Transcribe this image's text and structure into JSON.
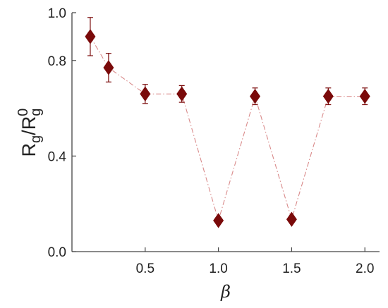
{
  "chart_data": {
    "type": "scatter",
    "xlabel": "β",
    "ylabel": {
      "main": "R",
      "sub": "g",
      "slash": "/R",
      "sup": "0",
      "sub2": "g"
    },
    "xlim": [
      0.0,
      2.1
    ],
    "ylim": [
      0.0,
      1.0
    ],
    "xticks": [
      0.5,
      1.0,
      1.5,
      2.0
    ],
    "xtick_labels": [
      "0.5",
      "1.0",
      "1.5",
      "2.0"
    ],
    "yticks": [
      0.0,
      0.4,
      0.8,
      1.0
    ],
    "ytick_labels": [
      "0.0",
      "0.4",
      "0.8",
      "1.0"
    ],
    "grid": false,
    "legend": "none",
    "series": [
      {
        "x": [
          0.125,
          0.25,
          0.5,
          0.75,
          1.0,
          1.25,
          1.5,
          1.75,
          2.0
        ],
        "y": [
          0.9,
          0.77,
          0.66,
          0.66,
          0.13,
          0.65,
          0.135,
          0.65,
          0.65
        ],
        "err": [
          0.08,
          0.06,
          0.04,
          0.035,
          0.0,
          0.035,
          0.0,
          0.035,
          0.035
        ],
        "marker": "diamond",
        "color": "#7a0a0a",
        "line_style": "dash-dot",
        "line_color": "#d98a8a"
      }
    ]
  }
}
